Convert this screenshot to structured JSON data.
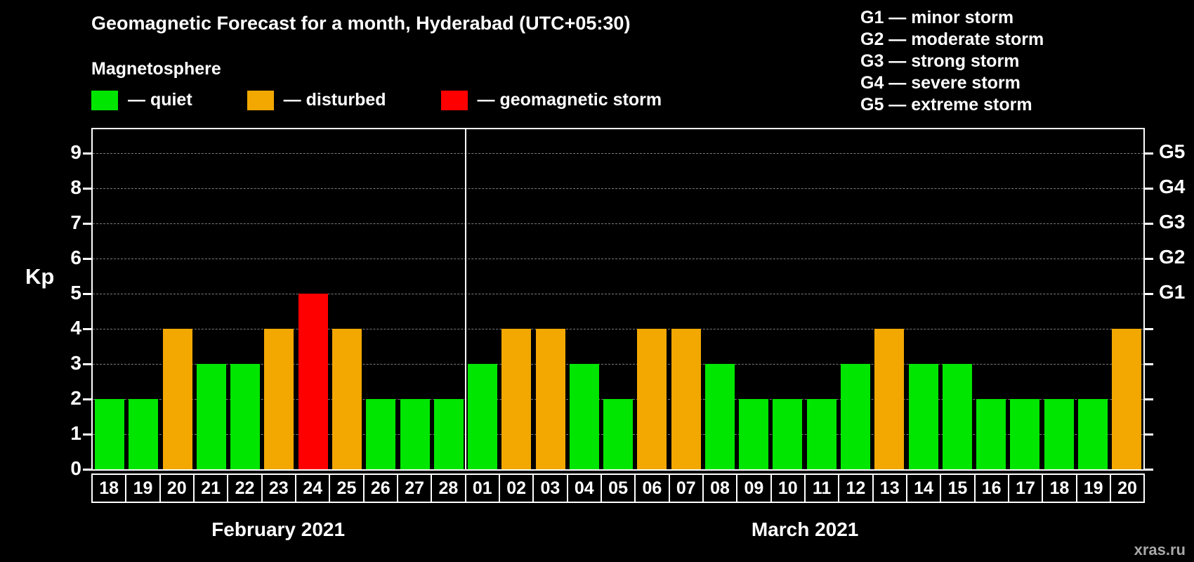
{
  "watermark": "xras.ru",
  "chart_data": {
    "type": "bar",
    "title": "Geomagnetic Forecast for a month, Hyderabad (UTC+05:30)",
    "subtitle": "Magnetosphere",
    "ylabel": "Kp",
    "ylim": [
      0,
      9.6
    ],
    "yticks": [
      0,
      1,
      2,
      3,
      4,
      5,
      6,
      7,
      8,
      9
    ],
    "grid": "dashed horizontal",
    "legend_position": "top-left",
    "legend": [
      {
        "status": "quiet",
        "label": "— quiet",
        "color": "#00e600"
      },
      {
        "status": "disturbed",
        "label": "— disturbed",
        "color": "#f2a800"
      },
      {
        "status": "storm",
        "label": "— geomagnetic storm",
        "color": "#ff0000"
      }
    ],
    "status_colors": {
      "quiet": "#00e600",
      "disturbed": "#f2a800",
      "storm": "#ff0000"
    },
    "g_legend": [
      "G1 — minor storm",
      "G2 — moderate storm",
      "G3 — strong storm",
      "G4 — severe storm",
      "G5 — extreme storm"
    ],
    "right_axis": [
      {
        "kp": 5,
        "label": "G1"
      },
      {
        "kp": 6,
        "label": "G2"
      },
      {
        "kp": 7,
        "label": "G3"
      },
      {
        "kp": 8,
        "label": "G4"
      },
      {
        "kp": 9,
        "label": "G5"
      }
    ],
    "months": [
      {
        "label": "February 2021",
        "days": 11
      },
      {
        "label": "March 2021",
        "days": 20
      }
    ],
    "days": [
      "18",
      "19",
      "20",
      "21",
      "22",
      "23",
      "24",
      "25",
      "26",
      "27",
      "28",
      "01",
      "02",
      "03",
      "04",
      "05",
      "06",
      "07",
      "08",
      "09",
      "10",
      "11",
      "12",
      "13",
      "14",
      "15",
      "16",
      "17",
      "18",
      "19",
      "20"
    ],
    "values": [
      2,
      2,
      4,
      3,
      3,
      4,
      5,
      4,
      2,
      2,
      2,
      3,
      4,
      4,
      3,
      2,
      4,
      4,
      3,
      2,
      2,
      2,
      3,
      4,
      3,
      3,
      2,
      2,
      2,
      2,
      4
    ],
    "statuses": [
      "quiet",
      "quiet",
      "disturbed",
      "quiet",
      "quiet",
      "disturbed",
      "storm",
      "disturbed",
      "quiet",
      "quiet",
      "quiet",
      "quiet",
      "disturbed",
      "disturbed",
      "quiet",
      "quiet",
      "disturbed",
      "disturbed",
      "quiet",
      "quiet",
      "quiet",
      "quiet",
      "quiet",
      "disturbed",
      "quiet",
      "quiet",
      "quiet",
      "quiet",
      "quiet",
      "quiet",
      "disturbed"
    ]
  }
}
